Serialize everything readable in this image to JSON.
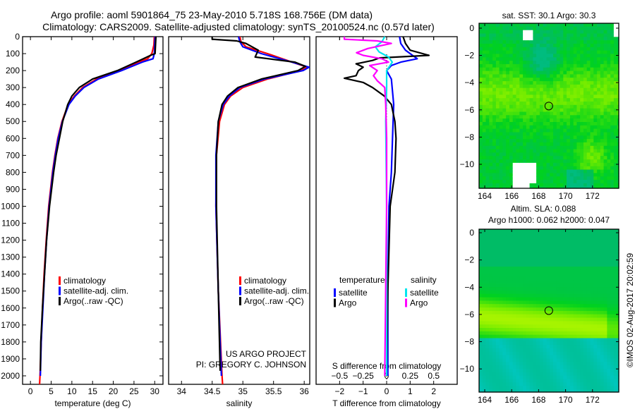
{
  "header": {
    "title_line1": "Argo profile: aoml 5901864_75 23-May-2010 5.718S 168.756E (DM data)",
    "title_line2": "Climatology: CARS2009. Satellite-adjusted climatology: synTS_20100524.nc (0.57d later)"
  },
  "credits": {
    "project": "US ARGO PROJECT",
    "pi": "PI: GREGORY C. JOHNSON",
    "stamp": "©IMOS 02-Aug-2017 20:02:59"
  },
  "colors": {
    "climatology": "#ff0000",
    "satellite": "#0000ff",
    "argo": "#000000",
    "sal_satellite": "#00e5ee",
    "sal_argo": "#ff00ff"
  },
  "chart_data": [
    {
      "id": "temperature",
      "type": "line",
      "xlabel": "temperature (deg C)",
      "ylabel": "",
      "xlim": [
        -1.9,
        32
      ],
      "ylim": [
        0,
        2050
      ],
      "xticks": [
        0,
        5,
        10,
        15,
        20,
        25,
        30
      ],
      "yticks": [
        0,
        100,
        200,
        300,
        400,
        500,
        600,
        700,
        800,
        900,
        1000,
        1100,
        1200,
        1300,
        1400,
        1500,
        1600,
        1700,
        1800,
        1900,
        2000
      ],
      "legend": [
        "climatology",
        "satellite-adj. clim.",
        "Argo(..raw -QC)"
      ],
      "series": [
        {
          "name": "climatology",
          "color": "#ff0000",
          "depth": [
            0,
            50,
            100,
            130,
            150,
            200,
            250,
            300,
            350,
            400,
            500,
            600,
            700,
            800,
            1000,
            1200,
            1400,
            1600,
            1800,
            2000,
            2050
          ],
          "values": [
            29.9,
            29.8,
            29.3,
            28.3,
            26.0,
            21.5,
            16.0,
            12.6,
            10.6,
            9.1,
            7.6,
            6.6,
            5.9,
            5.3,
            4.4,
            3.8,
            3.3,
            2.9,
            2.6,
            2.3,
            2.2
          ]
        },
        {
          "name": "satellite-adj. clim.",
          "color": "#0000ff",
          "depth": [
            0,
            50,
            100,
            130,
            150,
            200,
            250,
            300,
            350,
            400,
            500,
            600,
            700,
            800,
            1000,
            1200,
            1400,
            1600,
            1800,
            2000
          ],
          "values": [
            30.1,
            30.0,
            29.9,
            29.6,
            27.0,
            22.0,
            16.4,
            12.9,
            10.8,
            9.3,
            7.7,
            6.7,
            6.0,
            5.4,
            4.5,
            3.9,
            3.4,
            3.0,
            2.6,
            2.4
          ]
        },
        {
          "name": "Argo(..raw -QC)",
          "color": "#000000",
          "depth": [
            0,
            50,
            100,
            110,
            150,
            200,
            250,
            300,
            350,
            400,
            500,
            600,
            700,
            800,
            1000,
            1200,
            1400,
            1600,
            1800,
            1970
          ],
          "values": [
            30.3,
            30.2,
            30.1,
            29.0,
            25.5,
            21.0,
            15.0,
            11.8,
            10.0,
            9.0,
            7.8,
            7.0,
            6.2,
            5.6,
            4.6,
            3.9,
            3.4,
            2.9,
            2.5,
            2.4
          ]
        }
      ]
    },
    {
      "id": "salinity",
      "type": "line",
      "xlabel": "salinity",
      "xlim": [
        33.79,
        36.09
      ],
      "ylim": [
        0,
        2050
      ],
      "xticks": [
        34,
        34.5,
        35,
        35.5,
        36
      ],
      "legend": [
        "climatology",
        "satellite-adj. clim.",
        "Argo(..raw -QC)"
      ],
      "series": [
        {
          "name": "climatology",
          "color": "#ff0000",
          "depth": [
            0,
            30,
            60,
            100,
            150,
            180,
            200,
            250,
            300,
            350,
            400,
            500,
            700,
            1000,
            1500,
            2000,
            2050
          ],
          "values": [
            34.95,
            34.97,
            35.05,
            35.4,
            35.8,
            36.05,
            35.95,
            35.4,
            35.0,
            34.8,
            34.7,
            34.62,
            34.57,
            34.56,
            34.6,
            34.66,
            34.67
          ]
        },
        {
          "name": "satellite-adj. clim.",
          "color": "#0000ff",
          "depth": [
            0,
            30,
            60,
            100,
            150,
            180,
            200,
            250,
            300,
            350,
            400,
            500,
            700,
            1000,
            1500,
            2000
          ],
          "values": [
            34.93,
            34.95,
            35.0,
            35.3,
            35.8,
            36.08,
            35.98,
            35.35,
            34.95,
            34.78,
            34.68,
            34.6,
            34.56,
            34.56,
            34.6,
            34.65
          ]
        },
        {
          "name": "Argo(..raw -QC)",
          "color": "#000000",
          "depth": [
            0,
            15,
            25,
            40,
            80,
            120,
            150,
            175,
            200,
            250,
            300,
            350,
            400,
            500,
            700,
            1000,
            1500,
            1970
          ],
          "values": [
            34.5,
            34.5,
            34.9,
            35.05,
            35.25,
            35.2,
            35.85,
            36.02,
            35.9,
            35.3,
            34.92,
            34.75,
            34.66,
            34.6,
            34.57,
            34.57,
            34.6,
            34.63
          ]
        }
      ]
    },
    {
      "id": "difference",
      "type": "line",
      "xlabel": "T difference from climatology",
      "x2label": "S difference from climatology",
      "xlim": [
        -3,
        3
      ],
      "x2lim": [
        -0.75,
        0.75
      ],
      "ylim": [
        0,
        2050
      ],
      "xticks": [
        -2,
        -1,
        0,
        1,
        2
      ],
      "x2ticks": [
        -0.5,
        -0.25,
        0,
        0.25,
        0.5
      ],
      "legend_headers": [
        "temperature",
        "salinity"
      ],
      "legend": [
        "satellite",
        "Argo",
        "satellite",
        "Argo"
      ],
      "series": [
        {
          "name": "temperature satellite",
          "axis": "T",
          "color": "#0000ff",
          "depth": [
            0,
            40,
            80,
            110,
            130,
            150,
            170,
            200,
            250,
            400,
            600,
            800,
            1000,
            1500,
            2000
          ],
          "values": [
            0.55,
            0.6,
            0.8,
            1.1,
            1.3,
            0.6,
            0.2,
            0.0,
            0.2,
            0.3,
            0.25,
            0.2,
            0.1,
            0.05,
            0.05
          ]
        },
        {
          "name": "temperature Argo",
          "axis": "T",
          "color": "#000000",
          "depth": [
            0,
            40,
            80,
            110,
            125,
            140,
            160,
            180,
            200,
            230,
            245,
            270,
            300,
            350,
            400,
            500,
            600,
            800,
            1000,
            1500,
            2000
          ],
          "values": [
            0.7,
            0.8,
            1.0,
            1.8,
            -0.3,
            -0.6,
            -1.3,
            -1.0,
            -1.2,
            -1.3,
            -1.8,
            -1.0,
            -0.6,
            -0.1,
            0.2,
            0.35,
            0.4,
            0.35,
            0.15,
            0.05,
            0.0
          ]
        },
        {
          "name": "salinity satellite",
          "axis": "S",
          "color": "#00e5ee",
          "depth": [
            0,
            30,
            60,
            90,
            120,
            150,
            200,
            300,
            500,
            1000,
            2000
          ],
          "values": [
            -0.02,
            -0.05,
            -0.12,
            -0.08,
            0.02,
            0.06,
            0.0,
            0.0,
            -0.01,
            0.0,
            0.0
          ]
        },
        {
          "name": "salinity Argo",
          "axis": "S",
          "color": "#ff00ff",
          "depth": [
            0,
            15,
            25,
            40,
            70,
            95,
            110,
            130,
            150,
            170,
            200,
            230,
            260,
            300,
            400,
            600,
            1000,
            2000
          ],
          "values": [
            -0.45,
            -0.45,
            -0.1,
            0.05,
            -0.2,
            -0.32,
            -0.25,
            -0.05,
            0.02,
            -0.18,
            -0.1,
            -0.14,
            -0.1,
            -0.02,
            -0.01,
            0.0,
            0.0,
            -0.02
          ]
        }
      ]
    },
    {
      "id": "sst-map",
      "type": "heatmap",
      "title": "sat. SST: 30.1 Argo: 30.3",
      "xlim": [
        163.58,
        173.95
      ],
      "ylim": [
        -11.76,
        0.36
      ],
      "xticks": [
        164,
        166,
        168,
        170,
        172
      ],
      "yticks": [
        0,
        -2,
        -4,
        -6,
        -8,
        -10
      ],
      "marker": {
        "lon": 168.756,
        "lat": -5.718
      }
    },
    {
      "id": "sla-map",
      "type": "heatmap",
      "title_line1": "Altim. SLA: 0.088",
      "title_line2": "Argo h1000: 0.062 h2000: 0.047",
      "xlim": [
        163.58,
        173.95
      ],
      "ylim": [
        -11.7,
        0.26
      ],
      "xticks": [
        164,
        166,
        168,
        170,
        172
      ],
      "yticks": [
        0,
        -2,
        -4,
        -6,
        -8,
        -10
      ],
      "marker": {
        "lon": 168.756,
        "lat": -5.718
      }
    }
  ]
}
